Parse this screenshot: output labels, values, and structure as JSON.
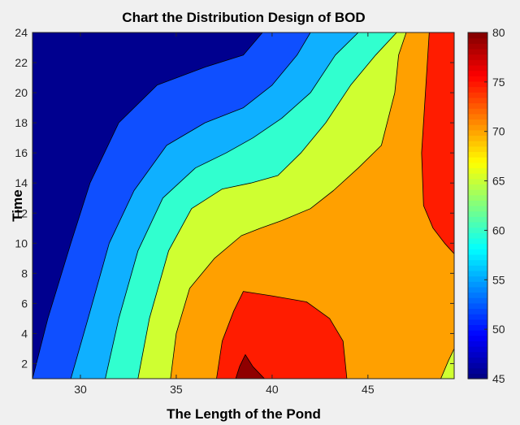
{
  "chart_data": {
    "type": "contour",
    "title": "Chart the Distribution Design of BOD",
    "xlabel": "The Length of the Pond",
    "ylabel": "Time",
    "xlim": [
      27.5,
      49.5
    ],
    "ylim": [
      1,
      24
    ],
    "x_ticks": [
      "30",
      "35",
      "40",
      "45"
    ],
    "y_ticks": [
      "2",
      "4",
      "6",
      "8",
      "10",
      "12",
      "14",
      "16",
      "18",
      "20",
      "22",
      "24"
    ],
    "colorbar": {
      "range": [
        45,
        80
      ],
      "ticks": [
        "45",
        "50",
        "55",
        "60",
        "65",
        "70",
        "75",
        "80"
      ],
      "colormap": "jet"
    },
    "contour_levels": [
      45,
      50,
      55,
      60,
      65,
      70,
      75,
      80
    ],
    "regions": [
      {
        "range": [
          45,
          50
        ],
        "color": "#00008f"
      },
      {
        "range": [
          50,
          55
        ],
        "color": "#0f4fff"
      },
      {
        "range": [
          55,
          60
        ],
        "color": "#0fb0ff"
      },
      {
        "range": [
          60,
          65
        ],
        "color": "#31ffcf"
      },
      {
        "range": [
          65,
          70
        ],
        "color": "#cfff31"
      },
      {
        "range": [
          70,
          75
        ],
        "color": "#ffa000"
      },
      {
        "range": [
          75,
          80
        ],
        "color": "#ff1c00"
      },
      {
        "range": [
          80,
          85
        ],
        "color": "#8f0000"
      }
    ],
    "contour_lines": [
      {
        "level": 50,
        "points": [
          [
            27.5,
            1
          ],
          [
            28.3,
            5
          ],
          [
            29.5,
            10
          ],
          [
            30.5,
            14
          ],
          [
            32,
            18
          ],
          [
            34,
            20.5
          ],
          [
            36.5,
            21.7
          ],
          [
            38.5,
            22.5
          ],
          [
            39.5,
            24
          ]
        ]
      },
      {
        "level": 55,
        "points": [
          [
            29.5,
            1
          ],
          [
            30.4,
            5
          ],
          [
            31.5,
            10
          ],
          [
            32.8,
            13.5
          ],
          [
            34.5,
            16.5
          ],
          [
            36.5,
            18
          ],
          [
            38.5,
            19
          ],
          [
            40,
            20.5
          ],
          [
            41.3,
            22.5
          ],
          [
            42,
            24
          ]
        ]
      },
      {
        "level": 60,
        "points": [
          [
            31.3,
            1
          ],
          [
            32,
            5
          ],
          [
            33,
            9.5
          ],
          [
            34.3,
            13
          ],
          [
            36,
            15
          ],
          [
            37.6,
            16
          ],
          [
            39,
            17
          ],
          [
            40.5,
            18.3
          ],
          [
            42,
            20
          ],
          [
            43.3,
            22.5
          ],
          [
            44.5,
            24
          ]
        ]
      },
      {
        "level": 65,
        "points": [
          [
            33,
            1
          ],
          [
            33.6,
            5
          ],
          [
            34.6,
            9.5
          ],
          [
            35.8,
            12.3
          ],
          [
            37.4,
            13.6
          ],
          [
            38.9,
            14
          ],
          [
            40.3,
            14.5
          ],
          [
            41.5,
            16
          ],
          [
            42.8,
            18
          ],
          [
            44.1,
            20.5
          ],
          [
            45.4,
            22.5
          ],
          [
            46.5,
            24
          ]
        ]
      },
      {
        "level": 70,
        "points": [
          [
            34.7,
            1
          ],
          [
            35,
            4
          ],
          [
            35.7,
            7
          ],
          [
            37,
            9
          ],
          [
            38.4,
            10.5
          ],
          [
            39.4,
            11
          ],
          [
            40.5,
            11.5
          ],
          [
            42,
            12.3
          ],
          [
            43.2,
            13.5
          ],
          [
            44.5,
            15
          ],
          [
            45.7,
            16.5
          ],
          [
            46.4,
            20
          ],
          [
            46.6,
            22.5
          ],
          [
            47,
            24
          ]
        ]
      },
      {
        "level": 75,
        "points": [
          [
            37.1,
            1
          ],
          [
            37.4,
            3.5
          ],
          [
            38,
            5.5
          ],
          [
            38.5,
            6.8
          ],
          [
            40,
            6.5
          ],
          [
            41.8,
            6.1
          ],
          [
            43,
            5
          ],
          [
            43.7,
            3.5
          ],
          [
            43.9,
            1
          ]
        ]
      },
      {
        "level": 75,
        "points": [
          [
            48.2,
            24
          ],
          [
            48,
            20
          ],
          [
            47.8,
            16
          ],
          [
            47.9,
            12.5
          ],
          [
            48.4,
            11
          ],
          [
            49,
            10
          ],
          [
            49.5,
            9.3
          ]
        ]
      },
      {
        "level": 80,
        "points": [
          [
            38.1,
            1
          ],
          [
            38.3,
            1.8
          ],
          [
            38.6,
            2.6
          ],
          [
            39,
            1.8
          ],
          [
            39.6,
            1
          ]
        ]
      },
      {
        "level": 65,
        "points": [
          [
            48.8,
            1
          ],
          [
            49.2,
            2.2
          ],
          [
            49.5,
            3
          ]
        ]
      }
    ]
  }
}
